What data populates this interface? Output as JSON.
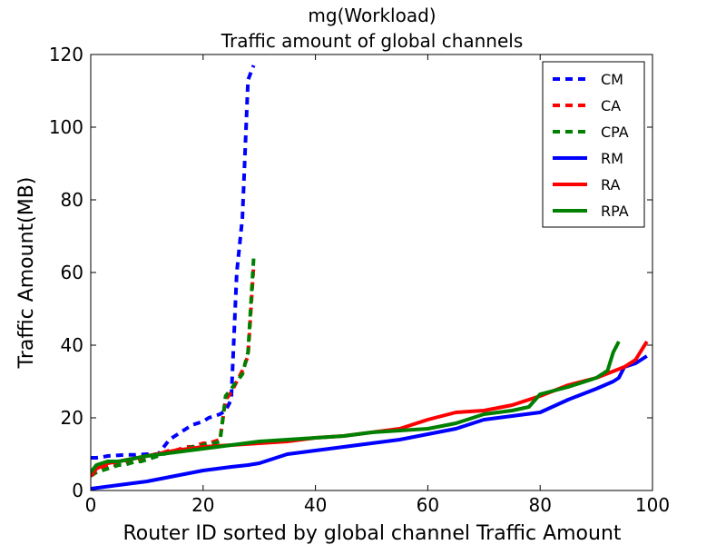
{
  "chart_data": {
    "type": "line",
    "title": "mg(Workload)",
    "subtitle": "Traffic amount of global channels",
    "xlabel": "Router ID sorted by global channel Traffic Amount",
    "ylabel": "Traffic Amount(MB)",
    "xlim": [
      0,
      100
    ],
    "ylim": [
      0,
      120
    ],
    "xticks": [
      0,
      20,
      40,
      60,
      80,
      100
    ],
    "yticks": [
      0,
      20,
      40,
      60,
      80,
      100,
      120
    ],
    "grid": false,
    "legend_position": "top-right",
    "series": [
      {
        "name": "CM",
        "color": "#0000ff",
        "style": "dashed",
        "x": [
          0,
          1,
          2,
          3,
          4,
          5,
          6,
          7,
          8,
          9,
          10,
          11,
          12,
          13,
          14,
          15,
          16,
          17,
          18,
          19,
          20,
          21,
          22,
          23,
          24,
          25,
          26,
          27,
          28,
          29
        ],
        "y": [
          9,
          9,
          9.2,
          9.5,
          9.6,
          9.7,
          9.8,
          9.8,
          9.8,
          9.9,
          10,
          10,
          10,
          12,
          14,
          15,
          16,
          17,
          18,
          18.5,
          19,
          20,
          20.5,
          21,
          22,
          25,
          60,
          75,
          113,
          117
        ]
      },
      {
        "name": "CA",
        "color": "#ff0000",
        "style": "dashed",
        "x": [
          0,
          1,
          2,
          3,
          4,
          5,
          6,
          7,
          8,
          9,
          10,
          11,
          12,
          13,
          14,
          15,
          16,
          17,
          18,
          19,
          20,
          21,
          22,
          23,
          24,
          25,
          26,
          27,
          28,
          29
        ],
        "y": [
          4,
          5,
          6,
          6.5,
          7,
          7,
          7.5,
          8,
          8,
          8.5,
          9,
          9.5,
          10,
          10.5,
          11,
          11,
          11.5,
          12,
          12,
          12.5,
          13,
          13,
          13.5,
          14,
          25,
          27,
          30,
          33,
          37,
          62
        ]
      },
      {
        "name": "CPA",
        "color": "#008000",
        "style": "dashed",
        "x": [
          0,
          1,
          2,
          3,
          4,
          5,
          6,
          7,
          8,
          9,
          10,
          11,
          12,
          13,
          14,
          15,
          16,
          17,
          18,
          19,
          20,
          21,
          22,
          23,
          24,
          25,
          26,
          27,
          28,
          29
        ],
        "y": [
          4,
          5,
          5.5,
          6,
          6.5,
          7,
          7,
          7.5,
          8,
          8,
          8.5,
          9,
          9.5,
          10,
          10.5,
          11,
          11,
          11.5,
          12,
          12,
          12.5,
          13,
          13,
          13.5,
          26,
          28,
          30,
          32,
          38,
          64
        ]
      },
      {
        "name": "RM",
        "color": "#0000ff",
        "style": "solid",
        "x": [
          0,
          5,
          10,
          15,
          20,
          25,
          28,
          30,
          35,
          40,
          45,
          50,
          55,
          60,
          65,
          70,
          75,
          80,
          85,
          90,
          93,
          94,
          95,
          97,
          99
        ],
        "y": [
          0.5,
          1.5,
          2.5,
          4,
          5.5,
          6.5,
          7,
          7.5,
          10,
          11,
          12,
          13,
          14,
          15.5,
          17,
          19.5,
          20.5,
          21.5,
          25,
          28,
          30,
          31,
          34,
          35,
          37
        ]
      },
      {
        "name": "RA",
        "color": "#ff0000",
        "style": "solid",
        "x": [
          0,
          1,
          3,
          5,
          10,
          15,
          20,
          25,
          30,
          35,
          40,
          45,
          50,
          55,
          60,
          65,
          70,
          75,
          80,
          85,
          90,
          95,
          97,
          99
        ],
        "y": [
          4,
          6,
          7.5,
          8,
          9.5,
          11,
          12,
          12.5,
          13,
          13.5,
          14.5,
          15,
          16,
          17,
          19.5,
          21.5,
          22,
          23.5,
          26,
          29,
          31,
          34,
          36,
          41
        ]
      },
      {
        "name": "RPA",
        "color": "#008000",
        "style": "solid",
        "x": [
          0,
          1,
          3,
          5,
          10,
          15,
          20,
          25,
          30,
          35,
          40,
          45,
          50,
          55,
          60,
          65,
          70,
          75,
          78,
          80,
          85,
          90,
          92,
          93,
          94
        ],
        "y": [
          5,
          7,
          8,
          8,
          9.5,
          10.5,
          11.5,
          12.5,
          13.5,
          14,
          14.5,
          15,
          16,
          16.5,
          17,
          18.5,
          21,
          22,
          23,
          26.5,
          28.5,
          31,
          33,
          38,
          41
        ]
      }
    ]
  }
}
